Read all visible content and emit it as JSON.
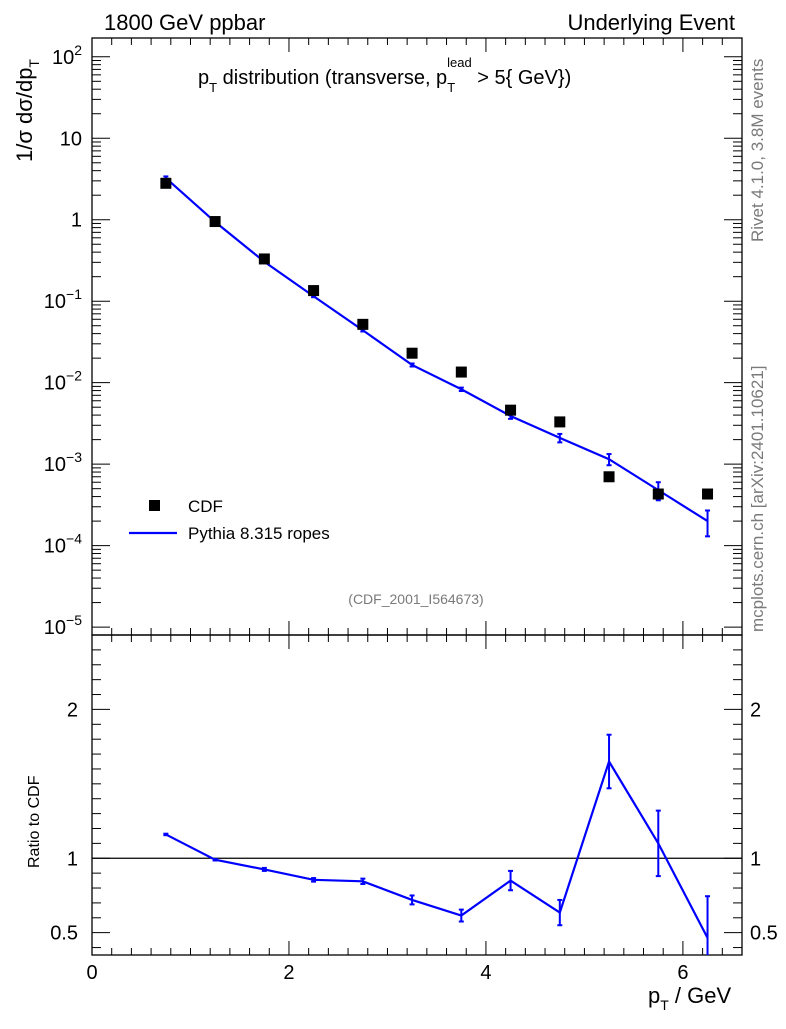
{
  "header": {
    "left": "1800 GeV ppbar",
    "right": "Underlying Event"
  },
  "side": {
    "rivet": "Rivet 4.1.0,  3.8M events",
    "mcplots": "mcplots.cern.ch [arXiv:2401.10621]"
  },
  "chart_data": [
    {
      "type": "line",
      "panel": "main",
      "title": "p_T distribution (transverse, p_T^lead > 5{ GeV})",
      "ylabel": "1/σ  dσ/dp_T",
      "yscale": "log",
      "ylim": [
        8e-06,
        170
      ],
      "xlim": [
        0,
        6.6
      ],
      "yticks": [
        {
          "value": 100,
          "base": "10",
          "exp": "2"
        },
        {
          "value": 10,
          "base": "10",
          "exp": ""
        },
        {
          "value": 1,
          "base": "1",
          "exp": ""
        },
        {
          "value": 0.1,
          "base": "10",
          "exp": "−1"
        },
        {
          "value": 0.01,
          "base": "10",
          "exp": "−2"
        },
        {
          "value": 0.001,
          "base": "10",
          "exp": "−3"
        },
        {
          "value": 0.0001,
          "base": "10",
          "exp": "−4"
        },
        {
          "value": 1e-05,
          "base": "10",
          "exp": "−5"
        }
      ],
      "series": [
        {
          "name": "CDF",
          "style": "markers",
          "color": "#000000",
          "x": [
            0.75,
            1.25,
            1.75,
            2.25,
            2.75,
            3.25,
            3.75,
            4.25,
            4.75,
            5.25,
            5.75,
            6.25
          ],
          "y": [
            2.8,
            0.95,
            0.33,
            0.135,
            0.052,
            0.023,
            0.0135,
            0.0046,
            0.0033,
            0.0007,
            0.00043,
            0.00043
          ]
        },
        {
          "name": "Pythia 8.315 ropes",
          "style": "line",
          "color": "#0000ff",
          "x": [
            0.75,
            1.25,
            1.75,
            2.25,
            2.75,
            3.25,
            3.75,
            4.25,
            4.75,
            5.25,
            5.75,
            6.25
          ],
          "y": [
            3.25,
            0.94,
            0.305,
            0.115,
            0.044,
            0.0165,
            0.0083,
            0.0039,
            0.0021,
            0.00115,
            0.00048,
            0.0002
          ],
          "err": [
            0.15,
            0.02,
            0.006,
            0.003,
            0.0015,
            0.0007,
            0.0004,
            0.0003,
            0.00025,
            0.00018,
            0.00012,
            7e-05
          ]
        }
      ],
      "legend_position": "bottom-left",
      "source_label": "(CDF_2001_I564673)"
    },
    {
      "type": "line",
      "panel": "ratio",
      "ylabel": "Ratio to CDF",
      "xlabel": "p_T / GeV",
      "ylim": [
        0.35,
        2.5
      ],
      "xlim": [
        0,
        6.6
      ],
      "xticks": [
        0,
        2,
        4,
        6
      ],
      "yticks": [
        0.5,
        1,
        2
      ],
      "ytick_labels": [
        "0.5",
        "1",
        "2"
      ],
      "reference": 1,
      "series": [
        {
          "name": "Pythia 8.315 ropes / CDF",
          "color": "#0000ff",
          "x": [
            0.75,
            1.25,
            1.75,
            2.25,
            2.75,
            3.25,
            3.75,
            4.25,
            4.75,
            5.25,
            5.75,
            6.25
          ],
          "y": [
            1.16,
            0.99,
            0.925,
            0.855,
            0.845,
            0.72,
            0.615,
            0.85,
            0.635,
            1.65,
            1.1,
            0.465
          ],
          "err": [
            0.005,
            0.005,
            0.01,
            0.012,
            0.018,
            0.03,
            0.04,
            0.065,
            0.085,
            0.18,
            0.22,
            0.28
          ]
        }
      ]
    }
  ]
}
